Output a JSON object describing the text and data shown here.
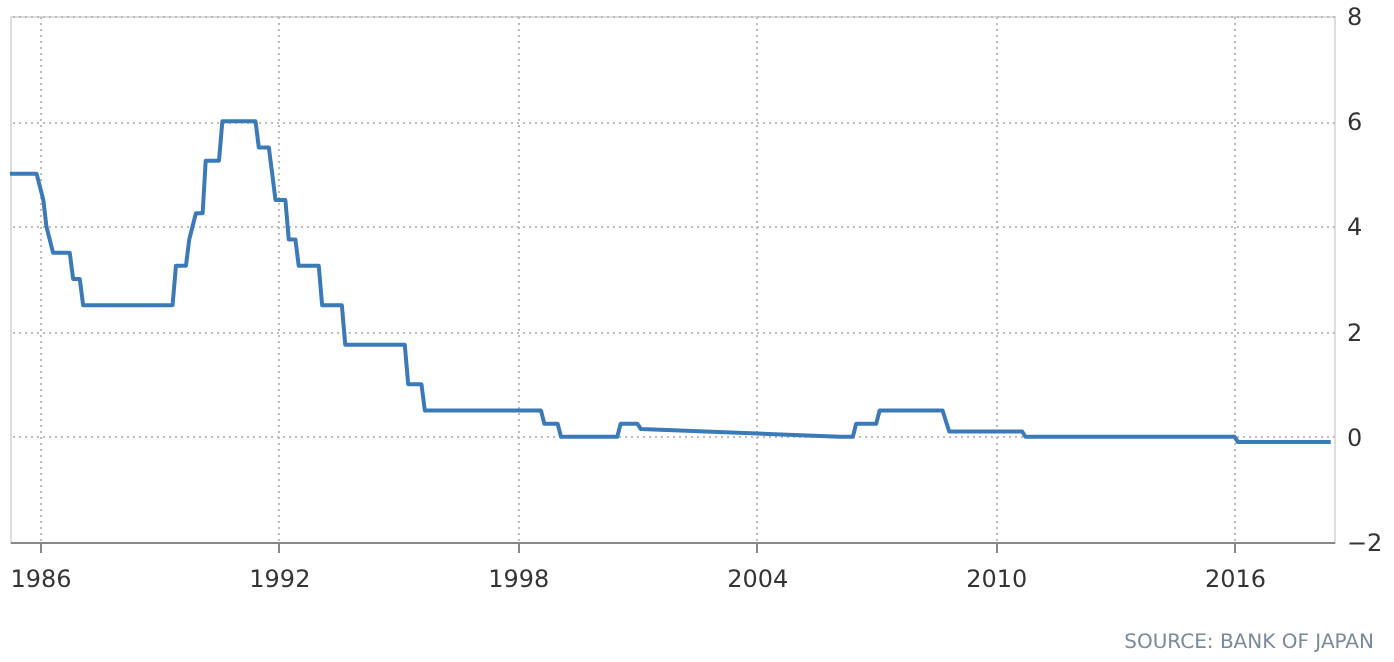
{
  "chart_data": {
    "type": "line",
    "color": "#3a7ab8",
    "line_style": "solid",
    "marker": "none",
    "grid": true,
    "x": [
      "1985-04",
      "1985-12",
      "1986-02",
      "1986-03",
      "1986-05",
      "1986-10",
      "1986-11",
      "1987-01",
      "1987-02",
      "1989-05",
      "1989-06",
      "1989-09",
      "1989-10",
      "1989-12",
      "1990-02",
      "1990-03",
      "1990-07",
      "1990-08",
      "1991-06",
      "1991-07",
      "1991-10",
      "1991-11",
      "1991-12",
      "1992-03",
      "1992-04",
      "1992-06",
      "1992-07",
      "1993-01",
      "1993-02",
      "1993-08",
      "1993-09",
      "1995-03",
      "1995-04",
      "1995-08",
      "1995-09",
      "1998-08",
      "1998-09",
      "1999-01",
      "1999-02",
      "2000-07",
      "2000-08",
      "2001-01",
      "2001-02",
      "2006-02",
      "2006-06",
      "2006-07",
      "2007-01",
      "2007-02",
      "2008-09",
      "2008-10",
      "2008-11",
      "2010-09",
      "2010-10",
      "2016-01",
      "2016-02",
      "2018-06"
    ],
    "values": [
      5.0,
      5.0,
      4.5,
      4.0,
      3.5,
      3.5,
      3.0,
      3.0,
      2.5,
      2.5,
      3.25,
      3.25,
      3.75,
      4.25,
      4.25,
      5.25,
      5.25,
      6.0,
      6.0,
      5.5,
      5.5,
      5.0,
      4.5,
      4.5,
      3.75,
      3.75,
      3.25,
      3.25,
      2.5,
      2.5,
      1.75,
      1.75,
      1.0,
      1.0,
      0.5,
      0.5,
      0.25,
      0.25,
      0.0,
      0.0,
      0.25,
      0.25,
      0.15,
      0.0,
      0.0,
      0.25,
      0.25,
      0.5,
      0.5,
      0.3,
      0.1,
      0.1,
      0.0,
      0.0,
      -0.1,
      -0.1
    ],
    "xlim": [
      "1985-04",
      "2018-07"
    ],
    "xticks": [
      {
        "value": "1986",
        "label": "1986"
      },
      {
        "value": "1992",
        "label": "1992"
      },
      {
        "value": "1998",
        "label": "1998"
      },
      {
        "value": "2004",
        "label": "2004"
      },
      {
        "value": "2010",
        "label": "2010"
      },
      {
        "value": "2016",
        "label": "2016"
      }
    ],
    "ylim": [
      -2,
      8
    ],
    "yticks": [
      -2,
      0,
      2,
      4,
      6,
      8
    ],
    "annotations": [
      "SOURCE: BANK OF JAPAN"
    ]
  }
}
